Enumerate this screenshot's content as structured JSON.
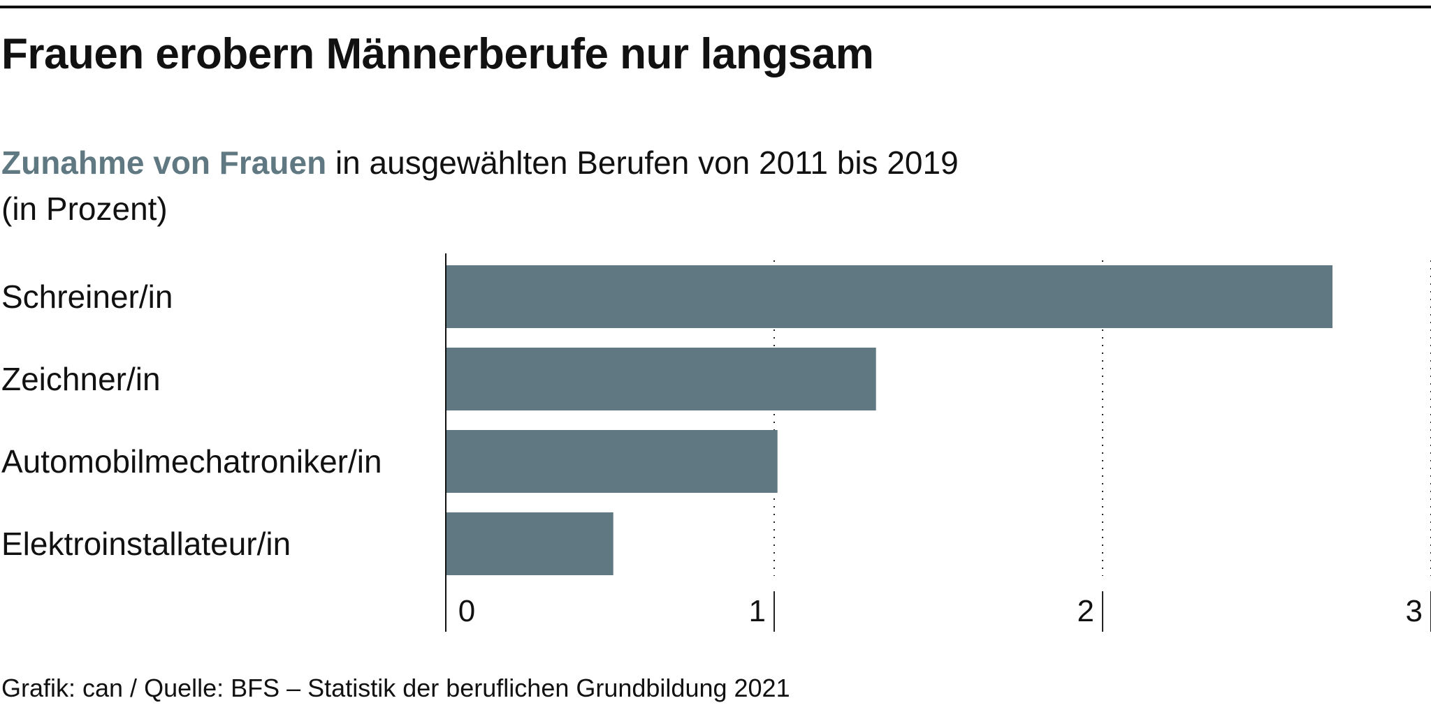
{
  "title": "Frauen erobern Männerberufe nur langsam",
  "subtitle": {
    "highlight": "Zunahme von Frauen",
    "rest": " in ausgewählten Berufen von 2011 bis 2019",
    "unit": "(in Prozent)"
  },
  "source": "Grafik: can / Quelle: BFS – Statistik der beruflichen Grundbildung 2021",
  "colors": {
    "bar": "#5f7881",
    "highlight": "#5f7881",
    "text": "#111111"
  },
  "chart_data": {
    "type": "bar",
    "orientation": "horizontal",
    "title": "Frauen erobern Männerberufe nur langsam",
    "xlabel": "",
    "ylabel": "",
    "xlim": [
      0,
      3
    ],
    "grid": "dotted vertical",
    "ticks": [
      0,
      1,
      2,
      3
    ],
    "tick_labels": [
      "0",
      "1",
      "2",
      "3"
    ],
    "categories": [
      "Schreiner/in",
      "Zeichner/in",
      "Automobilmechatroniker/in",
      "Elektroinstallateur/in"
    ],
    "values": [
      2.7,
      1.31,
      1.01,
      0.51
    ]
  }
}
